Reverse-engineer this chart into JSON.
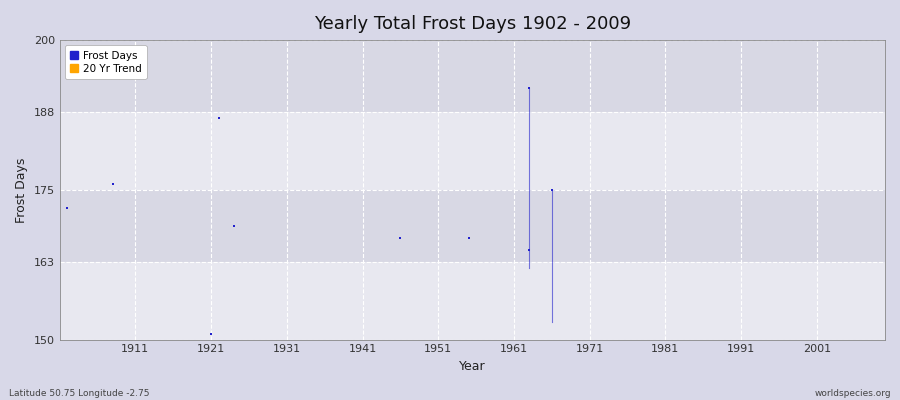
{
  "title": "Yearly Total Frost Days 1902 - 2009",
  "xlabel": "Year",
  "ylabel": "Frost Days",
  "xlim": [
    1901,
    2010
  ],
  "ylim": [
    150,
    200
  ],
  "yticks": [
    150,
    163,
    175,
    188,
    200
  ],
  "xticks": [
    1911,
    1921,
    1931,
    1941,
    1951,
    1961,
    1971,
    1981,
    1991,
    2001
  ],
  "background_color": "#d8d8e8",
  "plot_background_light": "#e8e8f0",
  "plot_background_dark": "#d8d8e4",
  "grid_color": "#ffffff",
  "frost_days_color": "#2222cc",
  "trend_color": "#ffa500",
  "scatter_points": [
    [
      1902,
      172
    ],
    [
      1908,
      176
    ],
    [
      1921,
      151
    ],
    [
      1922,
      187
    ],
    [
      1924,
      169
    ],
    [
      1946,
      167
    ],
    [
      1955,
      167
    ],
    [
      1963,
      165
    ],
    [
      1963,
      192
    ],
    [
      1966,
      175
    ]
  ],
  "trend_lines": [
    [
      [
        1963,
        192
      ],
      [
        1963,
        162
      ]
    ],
    [
      [
        1966,
        175
      ],
      [
        1966,
        153
      ]
    ]
  ],
  "bottom_left_text": "Latitude 50.75 Longitude -2.75",
  "bottom_right_text": "worldspecies.org",
  "legend_labels": [
    "Frost Days",
    "20 Yr Trend"
  ],
  "legend_colors": [
    "#2222cc",
    "#ffa500"
  ],
  "title_fontsize": 13,
  "axis_label_fontsize": 9,
  "tick_fontsize": 8,
  "legend_fontsize": 7.5,
  "marker_size": 4
}
